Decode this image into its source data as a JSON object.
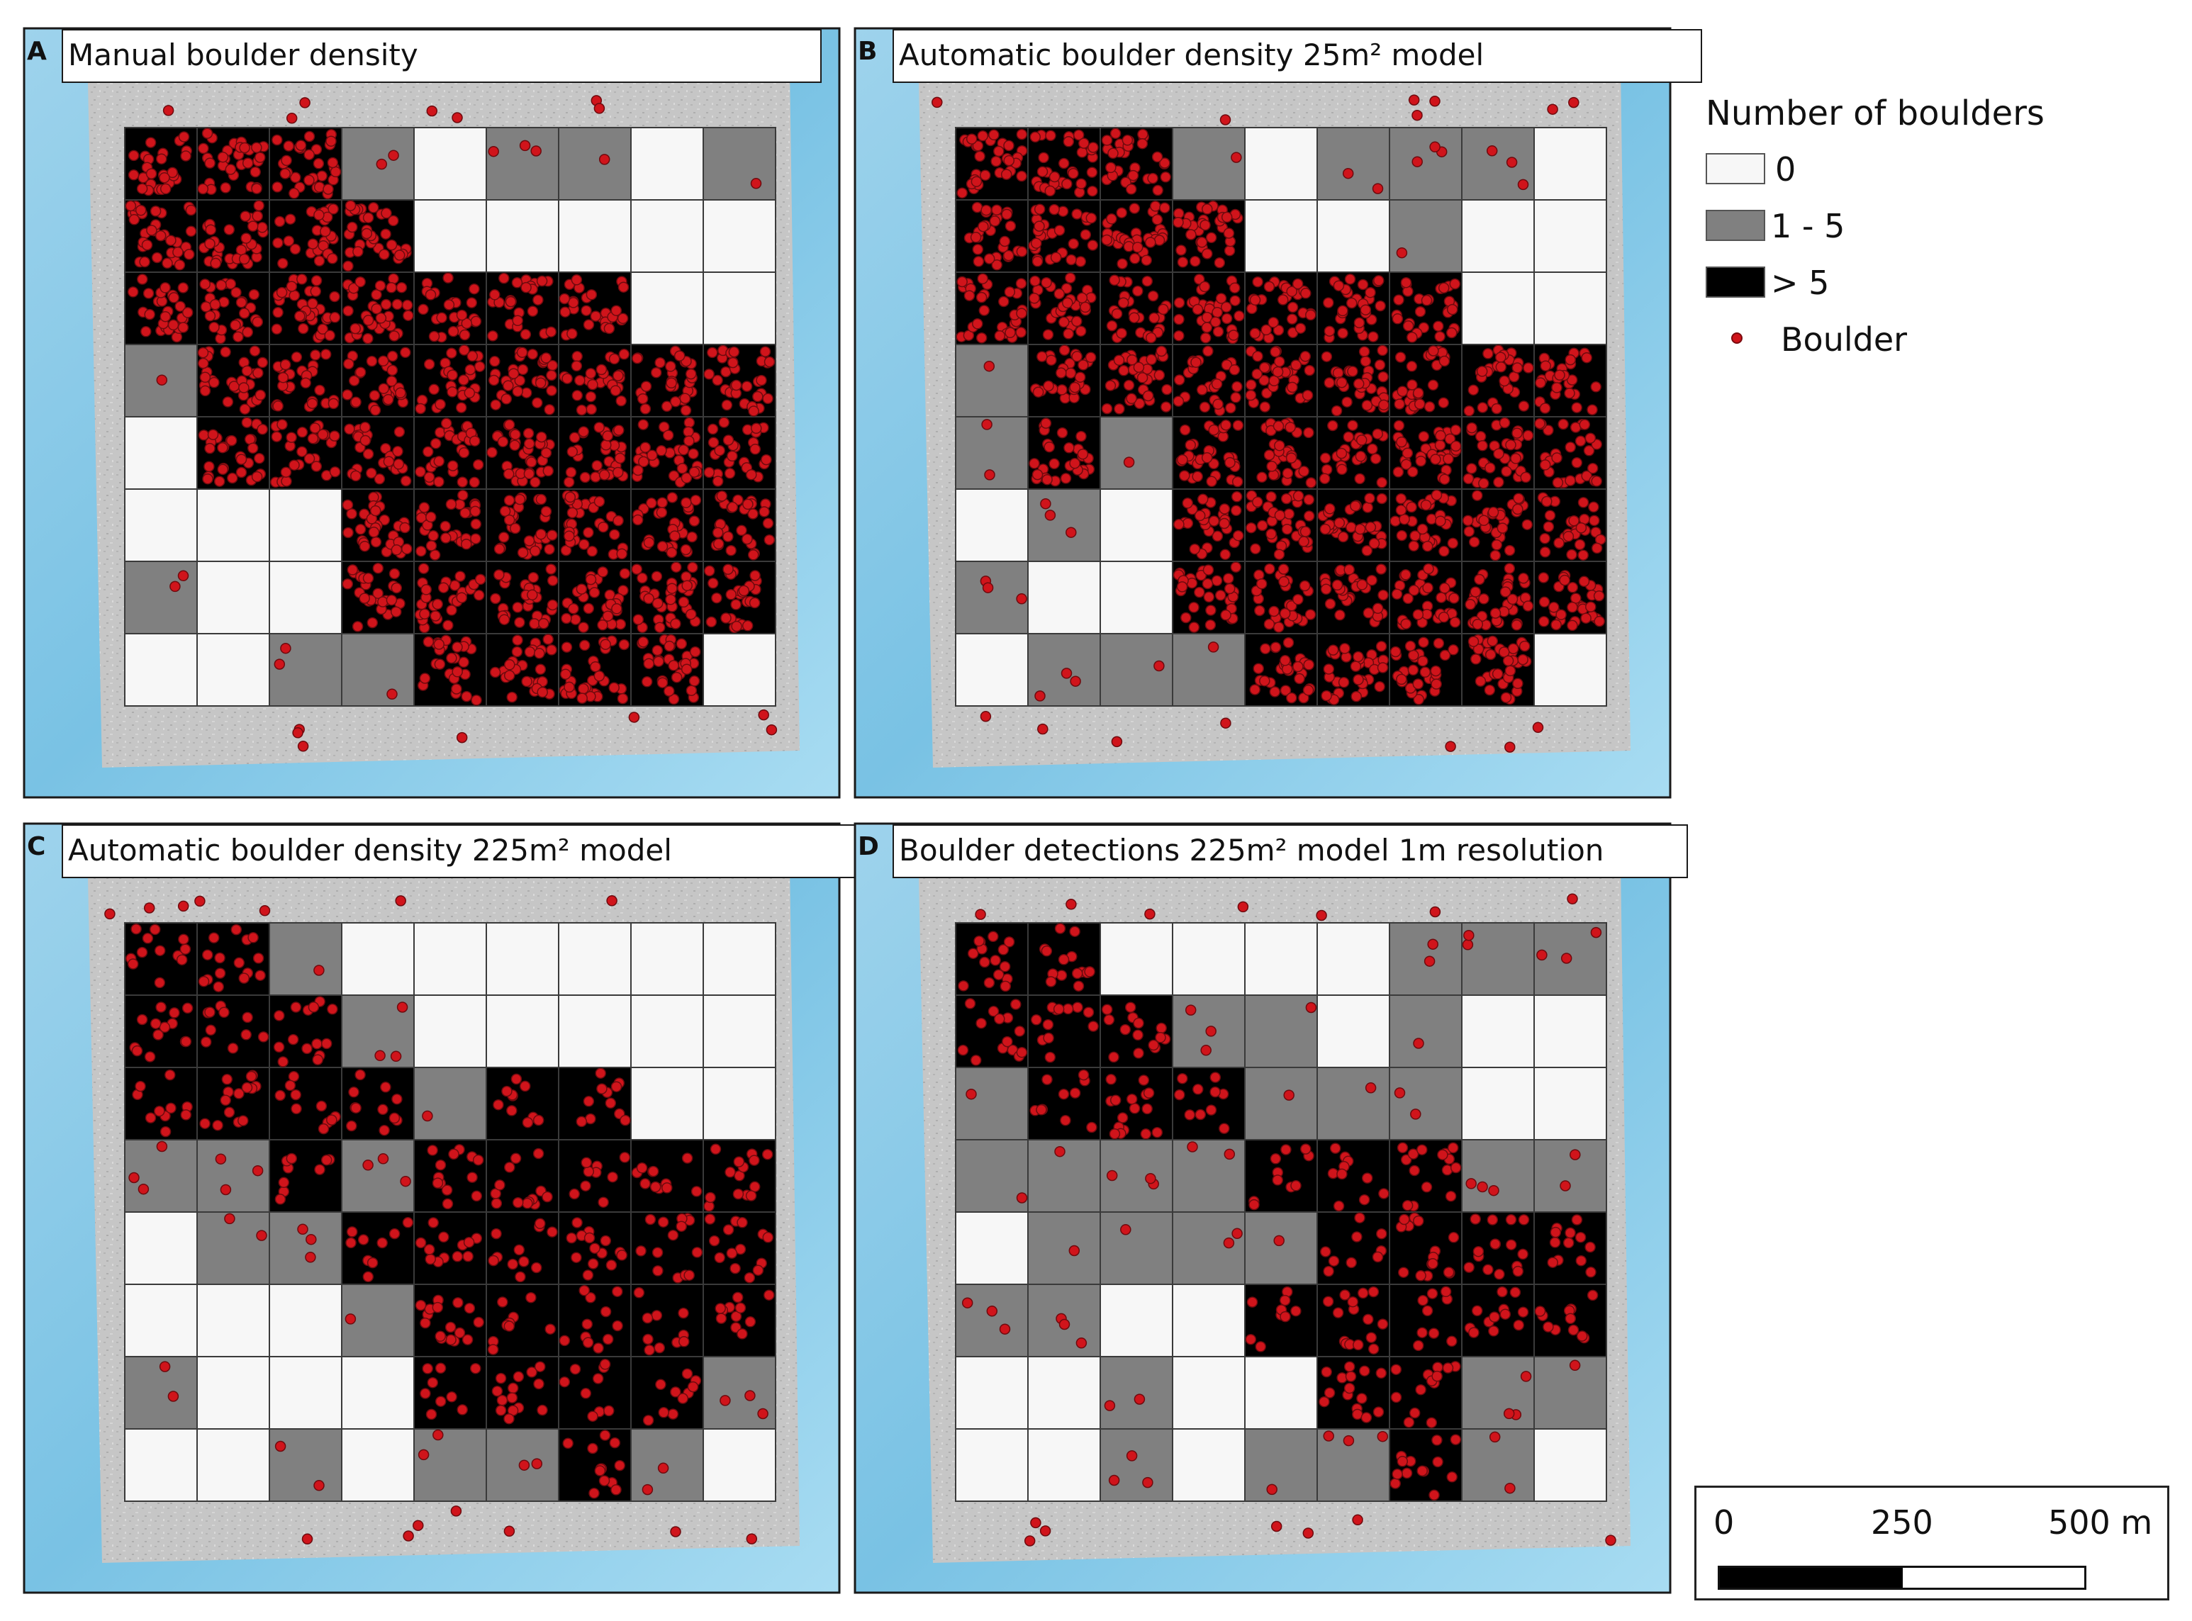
{
  "panels": [
    {
      "letter": "A",
      "title": "Manual boulder density",
      "grid": [
        [
          2,
          2,
          2,
          1,
          0,
          1,
          1,
          0,
          1
        ],
        [
          2,
          2,
          2,
          2,
          0,
          0,
          0,
          0,
          0
        ],
        [
          2,
          2,
          2,
          2,
          2,
          2,
          2,
          0,
          0
        ],
        [
          1,
          2,
          2,
          2,
          2,
          2,
          2,
          2,
          2
        ],
        [
          0,
          2,
          2,
          2,
          2,
          2,
          2,
          2,
          2
        ],
        [
          0,
          0,
          0,
          2,
          2,
          2,
          2,
          2,
          2
        ],
        [
          1,
          0,
          0,
          2,
          2,
          2,
          2,
          2,
          2
        ],
        [
          0,
          0,
          1,
          1,
          2,
          2,
          2,
          2,
          0
        ]
      ]
    },
    {
      "letter": "B",
      "title": "Automatic boulder density 25m² model",
      "grid": [
        [
          2,
          2,
          2,
          1,
          0,
          1,
          1,
          1,
          0
        ],
        [
          2,
          2,
          2,
          2,
          0,
          0,
          1,
          0,
          0
        ],
        [
          2,
          2,
          2,
          2,
          2,
          2,
          2,
          0,
          0
        ],
        [
          1,
          2,
          2,
          2,
          2,
          2,
          2,
          2,
          2
        ],
        [
          1,
          2,
          1,
          2,
          2,
          2,
          2,
          2,
          2
        ],
        [
          0,
          1,
          0,
          2,
          2,
          2,
          2,
          2,
          2
        ],
        [
          1,
          0,
          0,
          2,
          2,
          2,
          2,
          2,
          2
        ],
        [
          0,
          1,
          1,
          1,
          2,
          2,
          2,
          2,
          0
        ]
      ]
    },
    {
      "letter": "C",
      "title": "Automatic boulder density 225m² model",
      "grid": [
        [
          2,
          2,
          1,
          0,
          0,
          0,
          0,
          0,
          0
        ],
        [
          2,
          2,
          2,
          1,
          0,
          0,
          0,
          0,
          0
        ],
        [
          2,
          2,
          2,
          2,
          1,
          2,
          2,
          0,
          0
        ],
        [
          1,
          1,
          2,
          1,
          2,
          2,
          2,
          2,
          2
        ],
        [
          0,
          1,
          1,
          2,
          2,
          2,
          2,
          2,
          2
        ],
        [
          0,
          0,
          0,
          1,
          2,
          2,
          2,
          2,
          2
        ],
        [
          1,
          0,
          0,
          0,
          2,
          2,
          2,
          2,
          1
        ],
        [
          0,
          0,
          1,
          0,
          1,
          1,
          2,
          1,
          0
        ]
      ]
    },
    {
      "letter": "D",
      "title": "Boulder detections 225m² model 1m resolution",
      "grid": [
        [
          2,
          2,
          0,
          0,
          0,
          0,
          1,
          1,
          1
        ],
        [
          2,
          2,
          2,
          1,
          1,
          0,
          1,
          0,
          0
        ],
        [
          1,
          2,
          2,
          2,
          1,
          1,
          1,
          0,
          0
        ],
        [
          1,
          1,
          1,
          1,
          2,
          2,
          2,
          1,
          1
        ],
        [
          0,
          1,
          1,
          1,
          1,
          2,
          2,
          2,
          2
        ],
        [
          1,
          1,
          0,
          0,
          2,
          2,
          2,
          2,
          2
        ],
        [
          0,
          0,
          1,
          0,
          0,
          2,
          2,
          1,
          1
        ],
        [
          0,
          0,
          1,
          0,
          1,
          1,
          2,
          1,
          0
        ]
      ]
    }
  ],
  "legend": {
    "title": "Number of boulders",
    "classes": [
      {
        "label": "0",
        "color": "#f7f7f7"
      },
      {
        "label": "1 - 5",
        "color": "#808080"
      },
      {
        "label": "> 5",
        "color": "#000000"
      }
    ],
    "point": {
      "label": "Boulder",
      "color": "#d0141b"
    }
  },
  "scale_bar": {
    "ticks": [
      "0",
      "250",
      "500 m"
    ]
  },
  "colors": {
    "sea_light": "#a9daf0",
    "sea_dark": "#6fbde0",
    "bathymetry": "#c9c9c9",
    "boulder": "#d0141b",
    "boulder_outline": "#6e0a0e"
  }
}
